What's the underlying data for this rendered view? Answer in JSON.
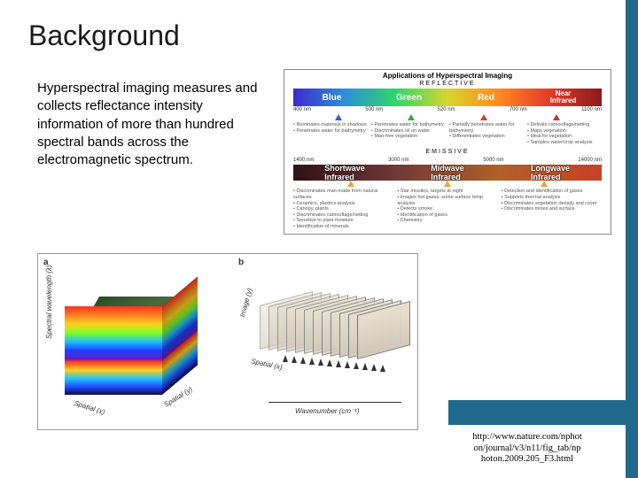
{
  "title": "Background",
  "body": "Hyperspectral imaging measures and collects reflectance intensity information of more than hundred spectral bands across the electromagnetic spectrum.",
  "citation": "http://www.nature.com/nphot on/journal/v3/n11/fig_tab/np hoton.2009.205_F3.html",
  "spectrum": {
    "title": "Applications of Hyperspectral Imaging",
    "reflective_label": "REFLECTIVE",
    "emissive_label": "EMISSIVE",
    "vnir_bands": [
      {
        "label": "Blue",
        "color": "#2e5fd6",
        "arrow": "#2e5fd6"
      },
      {
        "label": "Green",
        "color": "#2fae3b",
        "arrow": "#2fae3b"
      },
      {
        "label": "Red",
        "color": "#e23a2a",
        "arrow": "#e23a2a"
      },
      {
        "label": "Near Infrared",
        "color": "#b83a30",
        "arrow": "#b83a30"
      }
    ],
    "vnir_wavelengths": [
      "400 nm",
      "500 nm",
      "520 nm",
      "700 nm",
      "1100 nm"
    ],
    "vnir_desc": [
      {
        "items": [
          "Illuminates materials in shadows",
          "Penetrates water for bathymetry"
        ]
      },
      {
        "items": [
          "Penetrates water for bathymetry",
          "Discriminates oil on water",
          "Man-free vegetation"
        ]
      },
      {
        "items": [
          "Partially penetrates water for bathymetry",
          "Differentiates vegetation"
        ]
      },
      {
        "items": [
          "Defeats camouflage/netting",
          "Maps vegetation",
          "Ideal for vegetation",
          "Samples water/crop analysis"
        ]
      }
    ],
    "ir_bands": [
      {
        "label": "Shortwave Infrared",
        "bg": "linear-gradient(90deg,#301018,#703838)"
      },
      {
        "label": "Midwave Infrared",
        "bg": "linear-gradient(90deg,#703838,#b06028)"
      },
      {
        "label": "Longwave Infrared",
        "bg": "linear-gradient(90deg,#b06028,#c84028)"
      }
    ],
    "ir_wavelengths": [
      "1400 nm",
      "3000 nm",
      "5000 nm",
      "14000 nm"
    ],
    "ir_arrow": "#f0a040",
    "ir_desc": [
      {
        "items": [
          "Discriminates man-made from natural surfaces",
          "Ceramics, plastics analysis",
          "Canopy, plants",
          "Discriminates camouflage/netting",
          "Sensitive to plant moisture",
          "Identification of minerals"
        ]
      },
      {
        "items": [
          "Star missiles, targets at night",
          "Images hot gases, some surface temp analysis",
          "Detects smoke",
          "Identification of gases",
          "Chemistry"
        ]
      },
      {
        "items": [
          "Detection and identification of gases",
          "Supports thermal analysis",
          "Discriminates vegetation density and cover",
          "Discriminates mines and surface"
        ]
      }
    ]
  },
  "cube": {
    "panel_a": "a",
    "panel_b": "b",
    "a_axes": {
      "z": "Spectral wavelength (λ)",
      "x": "Spatial (x)",
      "y": "Spatial (y)"
    },
    "b_axes": {
      "y": "Image (y)",
      "x": "Spatial (x)",
      "wn": "Wavenumber (cm⁻¹)"
    },
    "slices": 12
  },
  "colors": {
    "accent": "#1f6a8c",
    "text": "#000000",
    "border": "#888888"
  }
}
